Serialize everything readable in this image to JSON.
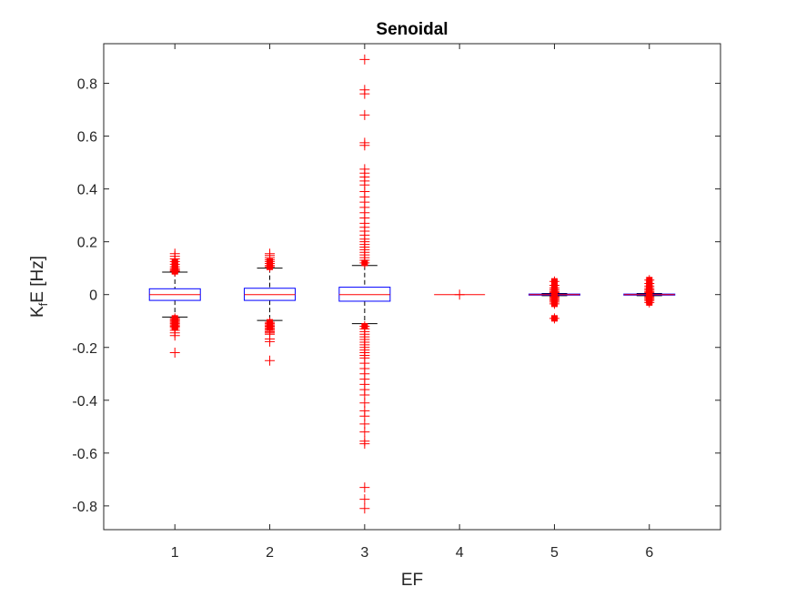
{
  "chart_data": {
    "type": "boxplot",
    "title": "Senoidal",
    "xlabel": "EF",
    "ylabel": {
      "main": "K",
      "sub": "f",
      "rest": "E [Hz]"
    },
    "categories": [
      "1",
      "2",
      "3",
      "4",
      "5",
      "6"
    ],
    "ylim": [
      -0.89,
      0.95
    ],
    "yticks": [
      -0.8,
      -0.6,
      -0.4,
      -0.2,
      0,
      0.2,
      0.4,
      0.6,
      0.8
    ],
    "ytick_labels": [
      "-0.8",
      "-0.6",
      "-0.4",
      "-0.2",
      "0",
      "0.2",
      "0.4",
      "0.6",
      "0.8"
    ],
    "grid": false,
    "colors": {
      "box": "#0000FF",
      "median": "#FF0000",
      "whisker": "#000000",
      "outlier": "#FF0000",
      "axis": "#262626"
    },
    "boxes": [
      {
        "category": "1",
        "q1": -0.022,
        "median": 0.0,
        "q3": 0.022,
        "whisker_low": -0.085,
        "whisker_high": 0.085,
        "outliers": [
          0.155,
          0.145,
          0.135,
          0.125,
          0.115,
          0.105,
          0.097,
          0.092,
          0.088,
          -0.09,
          -0.095,
          -0.1,
          -0.105,
          -0.11,
          -0.115,
          -0.12,
          -0.125,
          -0.135,
          -0.145,
          -0.155,
          -0.22
        ]
      },
      {
        "category": "2",
        "q1": -0.022,
        "median": 0.0,
        "q3": 0.024,
        "whisker_low": -0.098,
        "whisker_high": 0.1,
        "outliers": [
          0.155,
          0.148,
          0.14,
          0.132,
          0.125,
          0.118,
          0.11,
          0.105,
          -0.105,
          -0.11,
          -0.115,
          -0.12,
          -0.125,
          -0.13,
          -0.135,
          -0.14,
          -0.145,
          -0.15,
          -0.168,
          -0.178,
          -0.25
        ]
      },
      {
        "category": "3",
        "q1": -0.025,
        "median": 0.0,
        "q3": 0.028,
        "whisker_low": -0.11,
        "whisker_high": 0.11,
        "outliers": [
          0.89,
          0.775,
          0.76,
          0.68,
          0.575,
          0.565,
          0.475,
          0.46,
          0.445,
          0.43,
          0.415,
          0.39,
          0.37,
          0.35,
          0.33,
          0.31,
          0.29,
          0.27,
          0.255,
          0.24,
          0.225,
          0.21,
          0.2,
          0.19,
          0.18,
          0.17,
          0.16,
          0.15,
          0.14,
          0.13,
          0.12,
          -0.12,
          -0.13,
          -0.14,
          -0.15,
          -0.16,
          -0.17,
          -0.18,
          -0.19,
          -0.2,
          -0.21,
          -0.22,
          -0.23,
          -0.24,
          -0.26,
          -0.28,
          -0.3,
          -0.32,
          -0.34,
          -0.36,
          -0.38,
          -0.41,
          -0.44,
          -0.46,
          -0.49,
          -0.52,
          -0.555,
          -0.565,
          -0.73,
          -0.775,
          -0.81
        ]
      },
      {
        "category": "4",
        "q1": 0.0,
        "median": 0.0,
        "q3": 0.0,
        "whisker_low": 0.0,
        "whisker_high": 0.0,
        "outliers": [
          0.0
        ]
      },
      {
        "category": "5",
        "q1": -0.002,
        "median": 0.0,
        "q3": 0.002,
        "whisker_low": -0.004,
        "whisker_high": 0.004,
        "outliers": [
          0.05,
          0.035,
          0.025,
          0.018,
          0.012,
          0.008,
          -0.008,
          -0.012,
          -0.018,
          -0.022,
          -0.028,
          -0.035,
          -0.09
        ]
      },
      {
        "category": "6",
        "q1": -0.002,
        "median": 0.0,
        "q3": 0.002,
        "whisker_low": -0.004,
        "whisker_high": 0.004,
        "outliers": [
          0.055,
          0.042,
          0.032,
          0.024,
          0.018,
          0.012,
          0.008,
          -0.008,
          -0.012,
          -0.018,
          -0.022,
          -0.03
        ]
      }
    ]
  }
}
